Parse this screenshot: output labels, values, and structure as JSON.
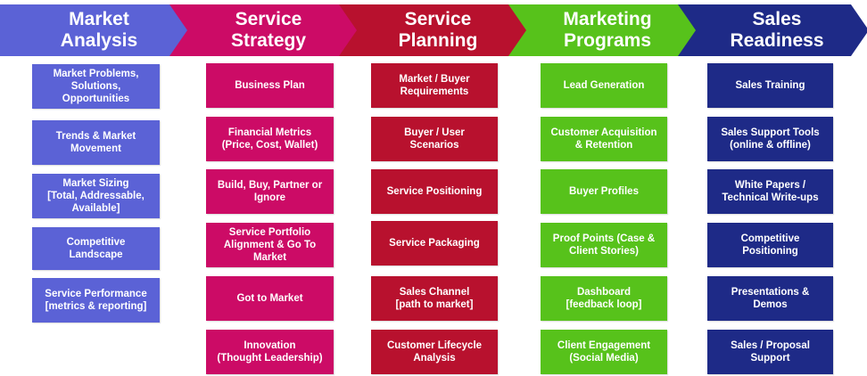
{
  "colors": {
    "market_analysis": "#5b62d6",
    "service_strategy": "#cc0b66",
    "service_planning": "#b8112e",
    "marketing_programs": "#57c21b",
    "sales_readiness": "#1e2a87"
  },
  "stages": [
    {
      "title": "Market\nAnalysis",
      "items": [
        "Market Problems,\nSolutions,\nOpportunities",
        "Trends & Market\nMovement",
        "Market Sizing\n[Total, Addressable,\nAvailable]",
        "Competitive\nLandscape",
        "Service Performance\n[metrics & reporting]"
      ]
    },
    {
      "title": "Service\nStrategy",
      "items": [
        "Business Plan",
        "Financial Metrics\n(Price, Cost, Wallet)",
        "Build, Buy, Partner or\nIgnore",
        "Service Portfolio\nAlignment & Go To\nMarket",
        "Got to Market",
        "Innovation\n(Thought Leadership)"
      ]
    },
    {
      "title": "Service\nPlanning",
      "items": [
        "Market / Buyer\nRequirements",
        "Buyer / User\nScenarios",
        "Service Positioning",
        "Service Packaging",
        "Sales Channel\n[path to market]",
        "Customer Lifecycle\nAnalysis"
      ]
    },
    {
      "title": "Marketing\nPrograms",
      "items": [
        "Lead Generation",
        "Customer Acquisition\n& Retention",
        "Buyer Profiles",
        "Proof Points (Case &\nClient Stories)",
        "Dashboard\n[feedback loop]",
        "Client Engagement\n(Social Media)"
      ]
    },
    {
      "title": "Sales\nReadiness",
      "items": [
        "Sales Training",
        "Sales Support Tools\n(online & offline)",
        "White Papers /\nTechnical Write-ups",
        "Competitive\nPositioning",
        "Presentations &\nDemos",
        "Sales / Proposal\nSupport"
      ]
    }
  ]
}
